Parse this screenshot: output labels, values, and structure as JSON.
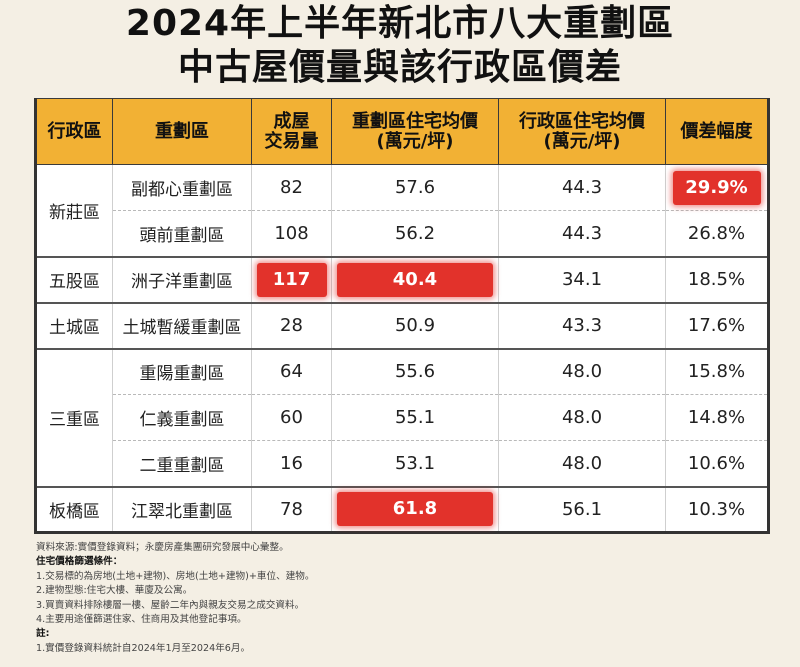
{
  "title": {
    "line1": "2024年上半年新北市八大重劃區",
    "line2": "中古屋價量與該行政區價差"
  },
  "table": {
    "headers": {
      "district": "行政區",
      "zone": "重劃區",
      "volume_l1": "成屋",
      "volume_l2": "交易量",
      "zone_price_l1": "重劃區住宅均價",
      "zone_price_l2": "(萬元/坪)",
      "district_price_l1": "行政區住宅均價",
      "district_price_l2": "(萬元/坪)",
      "diff": "價差幅度"
    },
    "districts": {
      "xinzhuang": "新莊區",
      "wugu": "五股區",
      "tucheng": "土城區",
      "sanchong": "三重區",
      "banqiao": "板橋區"
    },
    "rows": [
      {
        "zone": "副都心重劃區",
        "volume": "82",
        "zone_price": "57.6",
        "district_price": "44.3",
        "diff": "29.9%"
      },
      {
        "zone": "頭前重劃區",
        "volume": "108",
        "zone_price": "56.2",
        "district_price": "44.3",
        "diff": "26.8%"
      },
      {
        "zone": "洲子洋重劃區",
        "volume": "117",
        "zone_price": "40.4",
        "district_price": "34.1",
        "diff": "18.5%"
      },
      {
        "zone": "土城暫緩重劃區",
        "volume": "28",
        "zone_price": "50.9",
        "district_price": "43.3",
        "diff": "17.6%"
      },
      {
        "zone": "重陽重劃區",
        "volume": "64",
        "zone_price": "55.6",
        "district_price": "48.0",
        "diff": "15.8%"
      },
      {
        "zone": "仁義重劃區",
        "volume": "60",
        "zone_price": "55.1",
        "district_price": "48.0",
        "diff": "14.8%"
      },
      {
        "zone": "二重重劃區",
        "volume": "16",
        "zone_price": "53.1",
        "district_price": "48.0",
        "diff": "10.6%"
      },
      {
        "zone": "江翠北重劃區",
        "volume": "78",
        "zone_price": "61.8",
        "district_price": "56.1",
        "diff": "10.3%"
      }
    ],
    "highlight_color": "#e2322b",
    "header_color": "#f2b134"
  },
  "notes": {
    "source": "資料來源:實價登錄資料；永慶房產集團研究發展中心彙整。",
    "criteria_title": "住宅價格篩選條件：",
    "criteria": [
      "1.交易標的為房地(土地+建物)、房地(土地+建物)+車位、建物。",
      "2.建物型態:住宅大樓、華廈及公寓。",
      "3.買賣資料排除樓層一樓、屋齡二年內與親友交易之成交資料。",
      "4.主要用途僅篩選住家、住商用及其他登記事項。"
    ],
    "remark_title": "註:",
    "remarks": [
      "1.實價登錄資料統計自2024年1月至2024年6月。"
    ]
  }
}
